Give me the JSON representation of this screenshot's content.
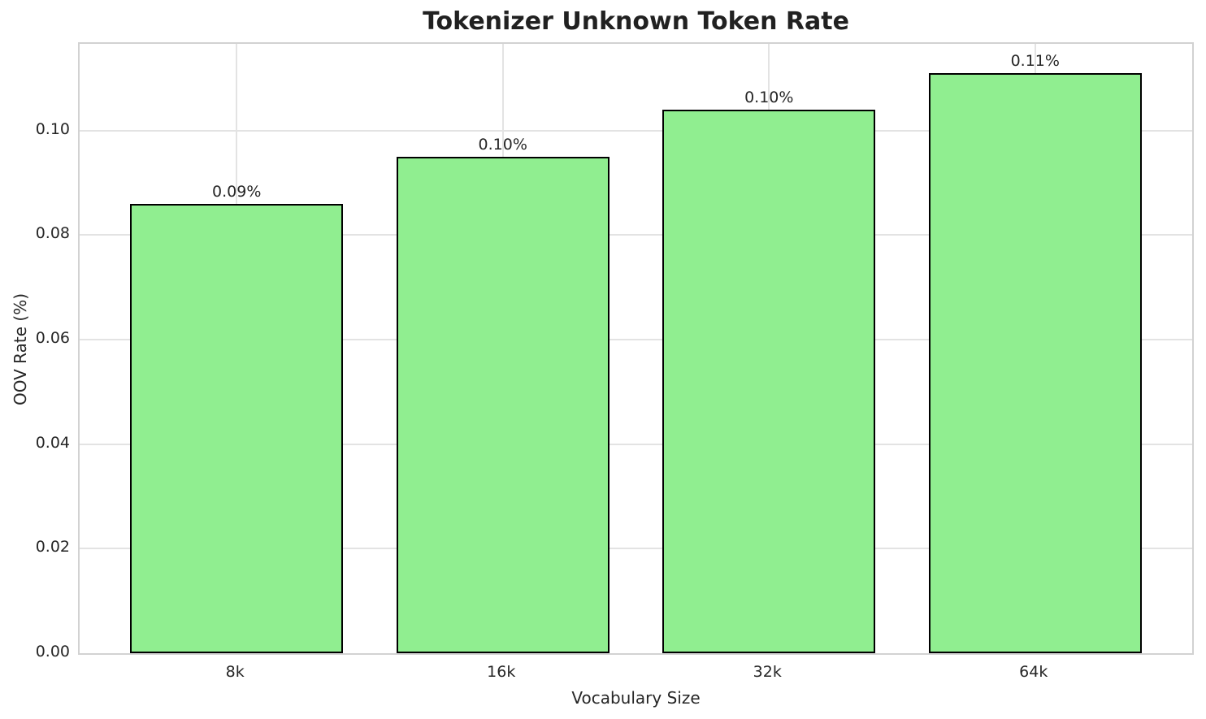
{
  "chart_data": {
    "type": "bar",
    "title": "Tokenizer Unknown Token Rate",
    "xlabel": "Vocabulary Size",
    "ylabel": "OOV Rate (%)",
    "categories": [
      "8k",
      "16k",
      "32k",
      "64k"
    ],
    "values": [
      0.086,
      0.095,
      0.104,
      0.111
    ],
    "bar_labels": [
      "0.09%",
      "0.10%",
      "0.10%",
      "0.11%"
    ],
    "ylim": [
      0,
      0.1166
    ],
    "xlim": [
      -0.59,
      3.59
    ],
    "bar_width": 0.8,
    "yticks": [
      0,
      0.02,
      0.04,
      0.06,
      0.08,
      0.1
    ],
    "ytick_labels": [
      "0.00",
      "0.02",
      "0.04",
      "0.06",
      "0.08",
      "0.10"
    ],
    "grid": true,
    "grid_axes": "both",
    "legend_position": "none",
    "colors": {
      "bar_fill": "#90ee90",
      "bar_edge": "#000000",
      "grid_line": "#e3e3e3",
      "spine": "#d2d2d2",
      "text": "#262626",
      "title_text": "#212121",
      "background": "#ffffff"
    }
  }
}
